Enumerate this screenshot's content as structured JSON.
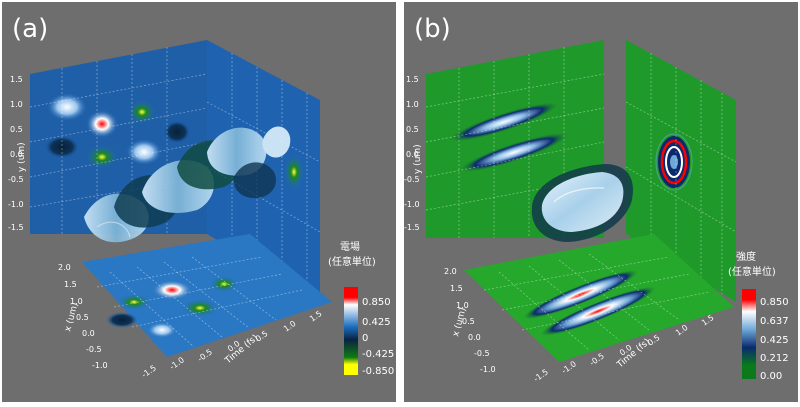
{
  "panels": [
    {
      "label": "(a)",
      "colorbar": {
        "title": [
          "電場",
          "(任意単位)"
        ],
        "ticks": [
          "0.850",
          "0.425",
          "0",
          "-0.425",
          "-0.850"
        ],
        "colors": [
          "#ff0000",
          "#ffffff",
          "#1b6fc0",
          "#0b2340",
          "#0f7a12",
          "#ffff00"
        ]
      },
      "axes": {
        "y_label": "y (um)",
        "x_label": "x (um)",
        "time_label": "Time (fs)",
        "y_ticks": [
          "1.5",
          "1.0",
          "0.5",
          "0.0",
          "-0.5",
          "-1.0",
          "-1.5"
        ],
        "x_ticks": [
          "2.0",
          "1.5",
          "1.0",
          "0.5",
          "0.0",
          "-0.5",
          "-1.0"
        ],
        "time_ticks": [
          "-1.5",
          "-1.0",
          "-0.5",
          "0.0",
          "0.5",
          "1.0",
          "1.5"
        ]
      }
    },
    {
      "label": "(b)",
      "colorbar": {
        "title": [
          "強度",
          "(任意単位)"
        ],
        "ticks": [
          "0.850",
          "0.637",
          "0.425",
          "0.212",
          "0.00"
        ],
        "colors": [
          "#ff0000",
          "#ffffff",
          "#6fa8d8",
          "#0b2a6e",
          "#0a7a1a"
        ]
      },
      "axes": {
        "y_label": "y (um)",
        "x_label": "x (um)",
        "time_label": "Time (fs)",
        "y_ticks": [
          "1.5",
          "1.0",
          "0.5",
          "0.0",
          "-0.5",
          "-1.0",
          "-1.5"
        ],
        "x_ticks": [
          "2.0",
          "1.5",
          "1.0",
          "0.5",
          "0.0",
          "-0.5",
          "-1.0"
        ],
        "time_ticks": [
          "-1.5",
          "-1.0",
          "-0.5",
          "0.0",
          "0.5",
          "1.0",
          "1.5"
        ]
      }
    }
  ]
}
